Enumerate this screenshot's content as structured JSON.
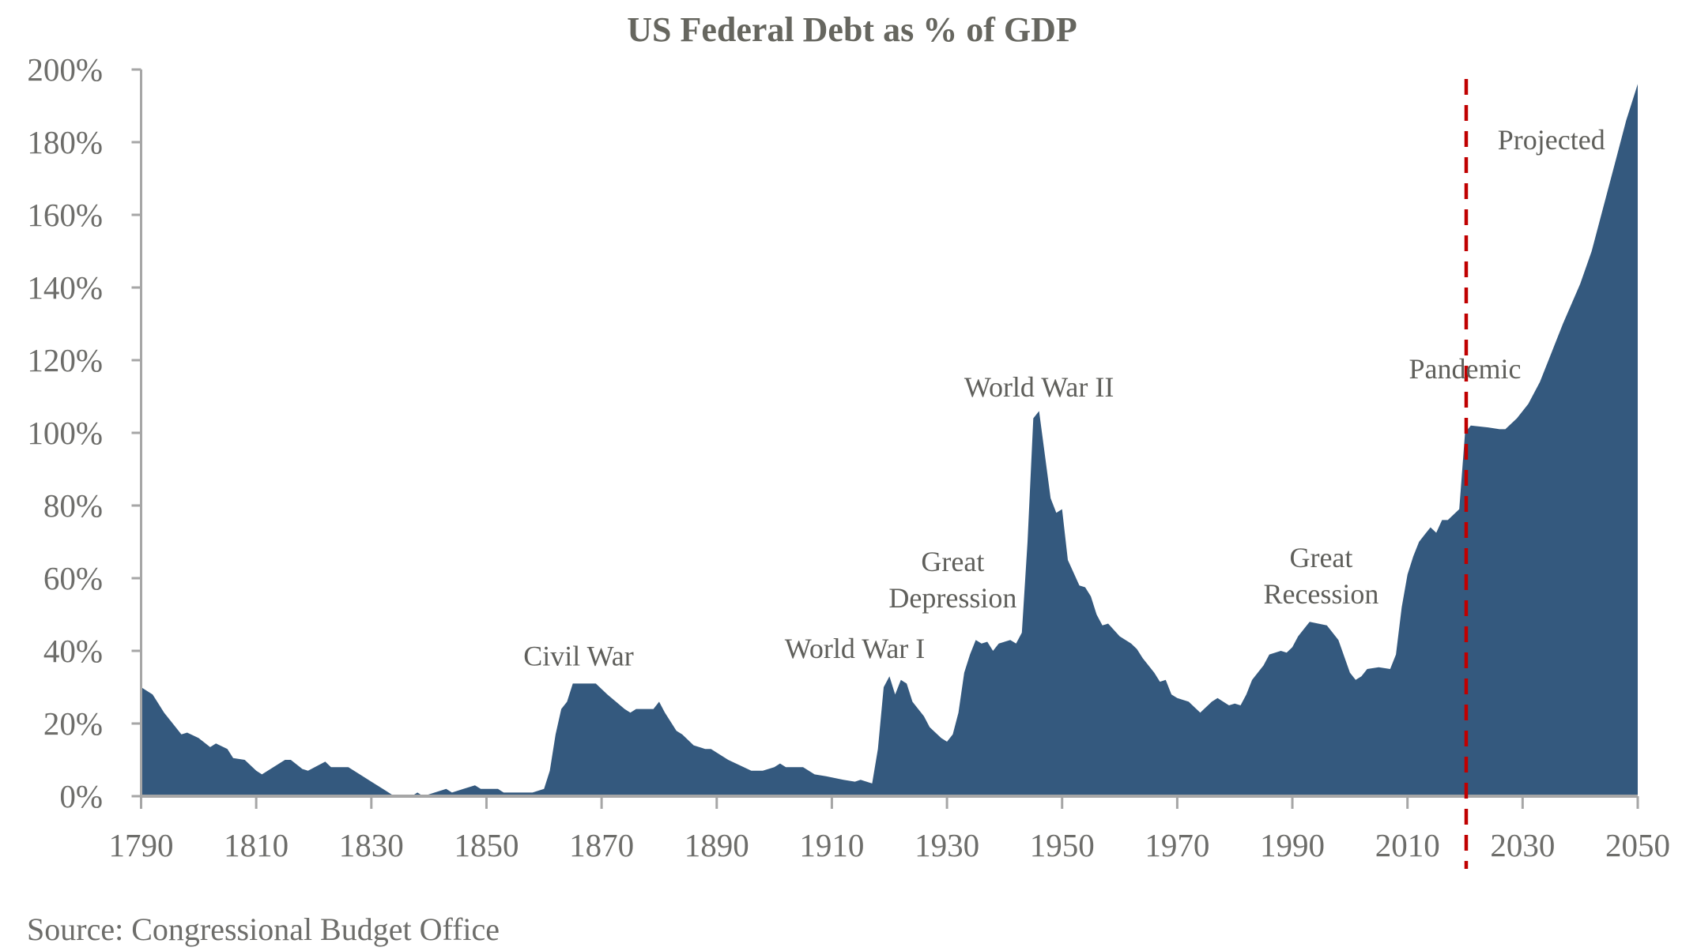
{
  "chart_data": {
    "type": "area",
    "title": "US Federal Debt as % of GDP",
    "source": "Source: Congressional Budget Office",
    "xlabel": "",
    "ylabel": "",
    "xlim": [
      1790,
      2050
    ],
    "ylim": [
      0,
      200
    ],
    "grid": false,
    "legend": "none",
    "x_ticks": [
      "1790",
      "1810",
      "1830",
      "1850",
      "1870",
      "1890",
      "1910",
      "1930",
      "1950",
      "1970",
      "1990",
      "2010",
      "2030",
      "2050"
    ],
    "y_ticks": [
      "0%",
      "20%",
      "40%",
      "60%",
      "80%",
      "100%",
      "120%",
      "140%",
      "160%",
      "180%",
      "200%"
    ],
    "colors": {
      "area": "#34597e",
      "projection_line": "#c00000",
      "axis": "#a6a6a6",
      "text": "#6d6d6a"
    },
    "projection_start_year": 2020,
    "annotations": [
      {
        "lines": [
          "Civil War"
        ],
        "x": 1866,
        "y": 36
      },
      {
        "lines": [
          "World War I"
        ],
        "x": 1914,
        "y": 38
      },
      {
        "lines": [
          "Great",
          "Depression"
        ],
        "x": 1931,
        "y": 52
      },
      {
        "lines": [
          "World War II"
        ],
        "x": 1946,
        "y": 110
      },
      {
        "lines": [
          "Great",
          "Recession"
        ],
        "x": 1995,
        "y": 53
      },
      {
        "lines": [
          "Pandemic"
        ],
        "x": 2020,
        "y": 115
      },
      {
        "lines": [
          "Projected"
        ],
        "x": 2035,
        "y": 178
      }
    ],
    "x": [
      1790,
      1792,
      1794,
      1797,
      1798,
      1800,
      1802,
      1803,
      1805,
      1806,
      1808,
      1810,
      1811,
      1815,
      1816,
      1818,
      1819,
      1822,
      1823,
      1826,
      1828,
      1830,
      1832,
      1834,
      1837,
      1838,
      1839,
      1841,
      1843,
      1844,
      1846,
      1848,
      1849,
      1852,
      1853,
      1858,
      1860,
      1861,
      1862,
      1863,
      1864,
      1865,
      1869,
      1871,
      1874,
      1875,
      1876,
      1879,
      1880,
      1881,
      1883,
      1884,
      1886,
      1888,
      1889,
      1892,
      1896,
      1898,
      1900,
      1901,
      1902,
      1905,
      1907,
      1909,
      1912,
      1914,
      1915,
      1917,
      1918,
      1919,
      1920,
      1921,
      1922,
      1923,
      1924,
      1926,
      1927,
      1929,
      1930,
      1931,
      1932,
      1933,
      1934,
      1935,
      1936,
      1937,
      1938,
      1939,
      1941,
      1942,
      1943,
      1944,
      1945,
      1946,
      1947,
      1948,
      1949,
      1950,
      1951,
      1953,
      1954,
      1955,
      1956,
      1957,
      1958,
      1960,
      1962,
      1963,
      1964,
      1966,
      1967,
      1968,
      1969,
      1970,
      1972,
      1974,
      1976,
      1977,
      1979,
      1980,
      1981,
      1982,
      1983,
      1985,
      1986,
      1988,
      1989,
      1990,
      1991,
      1993,
      1996,
      1998,
      2000,
      2001,
      2002,
      2003,
      2005,
      2007,
      2008,
      2009,
      2010,
      2011,
      2012,
      2013,
      2014,
      2015,
      2016,
      2017,
      2019,
      2020,
      2021,
      2024,
      2026,
      2027,
      2029,
      2031,
      2033,
      2035,
      2037,
      2040,
      2042,
      2044,
      2046,
      2048,
      2050
    ],
    "values": [
      30,
      28,
      23,
      17,
      17.5,
      16,
      13.5,
      14.5,
      13,
      10.5,
      10,
      7,
      6,
      10,
      10,
      7.5,
      7,
      9.5,
      8,
      8,
      6,
      4,
      2,
      0,
      0,
      1,
      0,
      1,
      2,
      1,
      2,
      3,
      2,
      2,
      1,
      1,
      2,
      7,
      17,
      24,
      26,
      31,
      31,
      28,
      24,
      23,
      24,
      24,
      26,
      23,
      18,
      17,
      14,
      13,
      13,
      10,
      7,
      7,
      8,
      9,
      8,
      8,
      6,
      5.5,
      4.5,
      4,
      4.5,
      3.5,
      13,
      30,
      33,
      28,
      32,
      31,
      26,
      22,
      19,
      16,
      15,
      17,
      23,
      34,
      39,
      43,
      42,
      42.5,
      40,
      42,
      43,
      42,
      45,
      70,
      104,
      106,
      94,
      82,
      78,
      79,
      65,
      58,
      57.5,
      55,
      50,
      47,
      47.5,
      44,
      42,
      40.5,
      38,
      34,
      31.5,
      32,
      28,
      27,
      26,
      23,
      26,
      27,
      25,
      25.5,
      25,
      28,
      32,
      36,
      39,
      40,
      39.5,
      41,
      44,
      48,
      47,
      43,
      34,
      32,
      33,
      35,
      35.5,
      35,
      39,
      52,
      61,
      66,
      70,
      72,
      74,
      72.5,
      76,
      76,
      79,
      100,
      102,
      101.5,
      101,
      101,
      104,
      108,
      114,
      122,
      130,
      141,
      150,
      162,
      174,
      186,
      196
    ]
  }
}
